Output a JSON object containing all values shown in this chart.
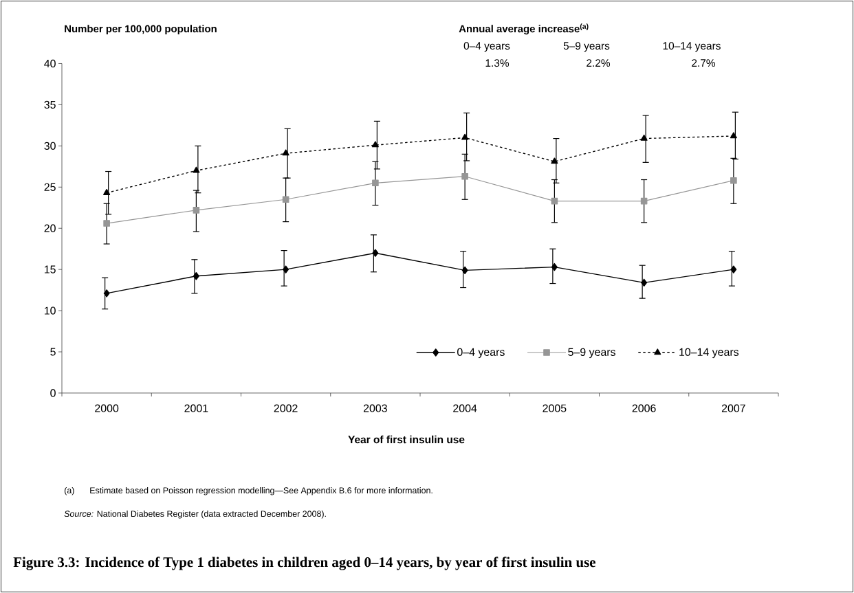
{
  "chart_data": {
    "type": "line",
    "title": "Figure 3.3: Incidence of Type 1 diabetes in children aged 0–14 years, by year of first insulin use",
    "xlabel": "Year of first insulin use",
    "ylabel": "Number per 100,000 population",
    "categories": [
      "2000",
      "2001",
      "2002",
      "2003",
      "2004",
      "2005",
      "2006",
      "2007"
    ],
    "ylim": [
      0,
      40
    ],
    "yticks": [
      0,
      5,
      10,
      15,
      20,
      25,
      30,
      35,
      40
    ],
    "grid": false,
    "legend": "bottom right",
    "series": [
      {
        "name": "0–4 years",
        "color": "#000000",
        "marker": "diamond",
        "line_style": "solid",
        "values": [
          12.1,
          14.2,
          15.0,
          17.0,
          14.9,
          15.3,
          13.4,
          15.0
        ],
        "errors": [
          [
            10.2,
            14.0
          ],
          [
            12.1,
            16.2
          ],
          [
            13.0,
            17.3
          ],
          [
            14.7,
            19.2
          ],
          [
            12.8,
            17.2
          ],
          [
            13.3,
            17.5
          ],
          [
            11.5,
            15.5
          ],
          [
            13.0,
            17.2
          ]
        ]
      },
      {
        "name": "5–9 years",
        "color": "#969696",
        "marker": "square",
        "line_style": "solid",
        "values": [
          20.6,
          22.2,
          23.5,
          25.5,
          26.3,
          23.3,
          23.3,
          25.8
        ],
        "errors": [
          [
            18.1,
            23.0
          ],
          [
            19.6,
            24.6
          ],
          [
            20.8,
            26.1
          ],
          [
            22.8,
            28.1
          ],
          [
            23.5,
            29.0
          ],
          [
            20.7,
            25.9
          ],
          [
            20.7,
            25.9
          ],
          [
            23.0,
            28.5
          ]
        ]
      },
      {
        "name": "10–14 years",
        "color": "#000000",
        "marker": "triangle",
        "line_style": "dashed",
        "values": [
          24.3,
          27.0,
          29.1,
          30.1,
          31.0,
          28.1,
          30.9,
          31.2
        ],
        "errors": [
          [
            21.7,
            26.9
          ],
          [
            24.3,
            30.0
          ],
          [
            26.1,
            32.1
          ],
          [
            27.2,
            33.0
          ],
          [
            28.2,
            34.0
          ],
          [
            25.5,
            30.9
          ],
          [
            28.0,
            33.7
          ],
          [
            28.4,
            34.1
          ]
        ]
      }
    ],
    "annotations": [
      "**Annual average increase**$^{(a)}$",
      "0–4 years",
      "5–9 years",
      "10–14 years",
      "1.3%",
      "2.2%",
      "2.7%",
      "(a)",
      "Estimate based on Poisson regression modelling—See Appendix B.6 for more information.",
      "*Source:* National Diabetes Register (data extracted December 2008)."
    ]
  }
}
